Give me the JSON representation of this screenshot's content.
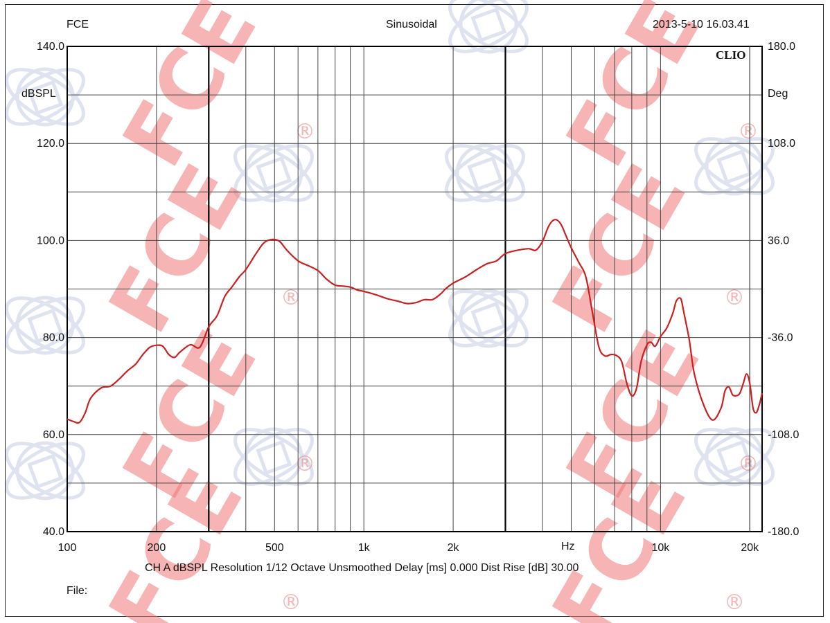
{
  "header": {
    "left": "FCE",
    "center": "Sinusoidal",
    "right": "2013-5-10 16.03.41"
  },
  "brand": "CLIO",
  "watermark": {
    "text": "FCE",
    "mark": "®",
    "color": "#f07878"
  },
  "footer": {
    "info": "CH A   dBSPL   Resolution 1/12 Octave   Unsmoothed   Delay [ms] 0.000   Dist Rise [dB] 30.00",
    "file": "File:"
  },
  "chart_data": {
    "type": "line",
    "x_scale": "log",
    "xlim": [
      100,
      22000
    ],
    "ylim": [
      40,
      140
    ],
    "y2lim": [
      -180,
      180
    ],
    "grid": true,
    "ylabel": "dBSPL",
    "y2label": "Deg",
    "xunit": "Hz",
    "x_ticks": [
      100,
      200,
      500,
      1000,
      2000,
      10000,
      20000
    ],
    "x_tick_labels": [
      "100",
      "200",
      "500",
      "1k",
      "2k",
      "10k",
      "20k"
    ],
    "y_ticks": [
      140,
      120,
      100,
      80,
      60,
      40
    ],
    "y_tick_labels": [
      "140.0",
      "120.0",
      "100.0",
      "80.0",
      "60.0",
      "40.0"
    ],
    "y2_ticks": [
      180,
      108,
      36,
      -36,
      -108,
      -180
    ],
    "y2_tick_labels": [
      "180.0",
      "108.0",
      "36.0",
      "-36.0",
      "-108.0",
      "-180.0"
    ],
    "series": [
      {
        "color": "#cc1f1f",
        "x": [
          100,
          105,
          110,
          115,
          120,
          130,
          140,
          150,
          160,
          170,
          180,
          190,
          200,
          210,
          220,
          230,
          240,
          260,
          280,
          300,
          320,
          340,
          360,
          380,
          400,
          430,
          460,
          490,
          520,
          550,
          600,
          650,
          700,
          750,
          800,
          850,
          900,
          950,
          1000,
          1100,
          1200,
          1300,
          1400,
          1500,
          1600,
          1700,
          1800,
          1900,
          2000,
          2200,
          2400,
          2600,
          2800,
          3000,
          3300,
          3600,
          3800,
          4000,
          4200,
          4400,
          4600,
          4800,
          5000,
          5300,
          5600,
          5900,
          6200,
          6500,
          6800,
          7100,
          7400,
          7700,
          8000,
          8300,
          8600,
          9000,
          9300,
          9600,
          10000,
          10500,
          11000,
          11300,
          11700,
          12000,
          12500,
          13000,
          14000,
          15000,
          16000,
          16500,
          17000,
          17500,
          18000,
          18500,
          19000,
          19500,
          20000,
          20500,
          21000,
          21500,
          22000
        ],
        "y": [
          63.2,
          62.7,
          62.5,
          64.5,
          67.5,
          69.6,
          70.0,
          71.5,
          73.2,
          74.5,
          76.5,
          78.0,
          78.4,
          78.2,
          76.5,
          75.9,
          77.0,
          78.5,
          78.0,
          82.2,
          84.5,
          88.5,
          90.5,
          92.5,
          94.0,
          97.0,
          99.5,
          100.2,
          99.8,
          98.0,
          95.8,
          94.8,
          93.8,
          92.0,
          90.8,
          90.6,
          90.4,
          89.8,
          89.5,
          88.8,
          88.0,
          87.5,
          87.0,
          87.2,
          87.8,
          87.8,
          88.8,
          90.2,
          91.2,
          92.5,
          94.0,
          95.2,
          95.8,
          97.3,
          98.0,
          98.3,
          98.0,
          99.8,
          103.0,
          104.3,
          103.5,
          101.0,
          98.5,
          95.5,
          92.5,
          85.0,
          78.0,
          76.2,
          76.5,
          76.3,
          75.0,
          70.5,
          68.0,
          69.5,
          75.0,
          78.5,
          79.0,
          78.2,
          80.2,
          82.0,
          85.0,
          87.5,
          88.0,
          85.0,
          79.5,
          72.5,
          66.0,
          63.0,
          65.5,
          69.0,
          69.8,
          68.2,
          68.0,
          68.5,
          70.5,
          72.5,
          70.5,
          65.5,
          64.5,
          66.0,
          68.5
        ]
      }
    ]
  }
}
